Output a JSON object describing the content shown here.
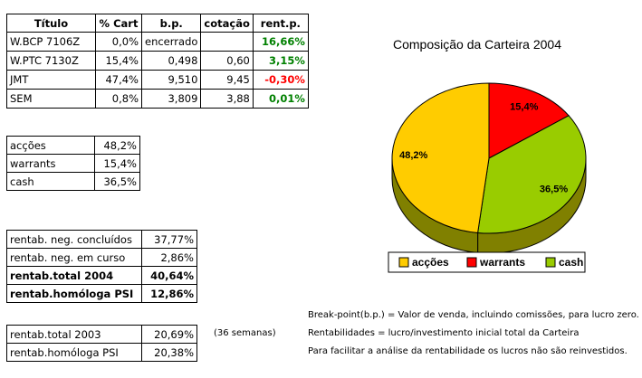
{
  "main_table": {
    "headers": [
      "Título",
      "% Cart",
      "b.p.",
      "cotação",
      "rent.p."
    ],
    "rows": [
      {
        "titulo": "W.BCP 7106Z",
        "cart": "0,0%",
        "bp": "encerrado",
        "cot": "",
        "rent": "16,66%",
        "rent_color": "#008000"
      },
      {
        "titulo": "W.PTC 7130Z",
        "cart": "15,4%",
        "bp": "0,498",
        "cot": "0,60",
        "rent": "3,15%",
        "rent_color": "#008000"
      },
      {
        "titulo": "JMT",
        "cart": "47,4%",
        "bp": "9,510",
        "cot": "9,45",
        "rent": "-0,30%",
        "rent_color": "#ff0000"
      },
      {
        "titulo": "SEM",
        "cart": "0,8%",
        "bp": "3,809",
        "cot": "3,88",
        "rent": "0,01%",
        "rent_color": "#008000"
      }
    ]
  },
  "composition_table": {
    "rows": [
      {
        "label": "acções",
        "value": "48,2%"
      },
      {
        "label": "warrants",
        "value": "15,4%"
      },
      {
        "label": "cash",
        "value": "36,5%"
      }
    ]
  },
  "rentab_table": {
    "rows": [
      {
        "label": "rentab. neg. concluídos",
        "value": "37,77%",
        "bold": false
      },
      {
        "label": "rentab. neg. em curso",
        "value": "2,86%",
        "bold": false
      },
      {
        "label": "rentab.total 2004",
        "value": "40,64%",
        "bold": true
      },
      {
        "label": "rentab.homóloga PSI",
        "value": "12,86%",
        "bold": true
      }
    ]
  },
  "rentab_2003_table": {
    "rows": [
      {
        "label": "rentab.total 2003",
        "value": "20,69%"
      },
      {
        "label": "rentab.homóloga PSI",
        "value": "20,38%"
      }
    ],
    "side_note": "(36 semanas)"
  },
  "notes": [
    "Break-point(b.p.) = Valor de venda, incluindo comissões, para lucro zero.",
    "Rentabilidades = lucro/investimento inicial total da Carteira",
    "Para facilitar a análise da rentabilidade os lucros não são reinvestidos."
  ],
  "chart_data": {
    "type": "pie",
    "title": "Composição da Carteira 2004",
    "categories": [
      "acções",
      "warrants",
      "cash"
    ],
    "values": [
      48.2,
      15.4,
      36.5
    ],
    "labels": [
      "48,2%",
      "15,4%",
      "36,5%"
    ],
    "colors": [
      "#ffcc00",
      "#ff0000",
      "#99cc00"
    ],
    "side_colors": [
      "#808000",
      "#800000",
      "#808000"
    ],
    "legend_position": "bottom"
  }
}
